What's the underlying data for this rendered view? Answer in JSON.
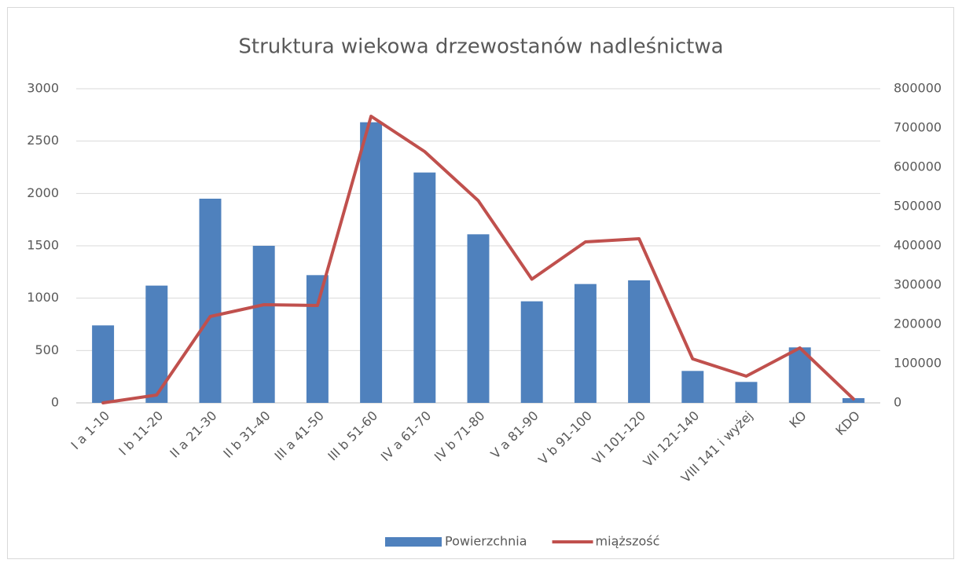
{
  "chart_data": {
    "type": "bar-line",
    "title": "Struktura wiekowa drzewostanów nadleśnictwa",
    "categories": [
      "I a 1-10",
      "I b 11-20",
      "II a 21-30",
      "II b 31-40",
      "III a 41-50",
      "III b 51-60",
      "IV a 61-70",
      "IV b 71-80",
      "V a 81-90",
      "V b 91-100",
      "VI 101-120",
      "VII 121-140",
      "VIII 141 i wyżej",
      "KO",
      "KDO"
    ],
    "series": [
      {
        "name": "Powierzchnia",
        "type": "bar",
        "color": "#4f81bd",
        "values": [
          740,
          1120,
          1950,
          1500,
          1220,
          2680,
          2200,
          1610,
          970,
          1135,
          1170,
          305,
          200,
          530,
          45
        ]
      },
      {
        "name": "miąższość",
        "type": "line",
        "axis": "y2",
        "color": "#c0504d",
        "values": [
          0,
          20000,
          220000,
          250000,
          248000,
          730000,
          640000,
          515000,
          315000,
          410000,
          418000,
          112000,
          68000,
          140000,
          10000
        ]
      }
    ],
    "ylim": [
      0,
      3000
    ],
    "yticks": [
      0,
      500,
      1000,
      1500,
      2000,
      2500,
      3000
    ],
    "y2lim": [
      0,
      800000
    ],
    "y2ticks": [
      0,
      100000,
      200000,
      300000,
      400000,
      500000,
      600000,
      700000,
      800000
    ],
    "grid": true,
    "legend": "bottom"
  }
}
